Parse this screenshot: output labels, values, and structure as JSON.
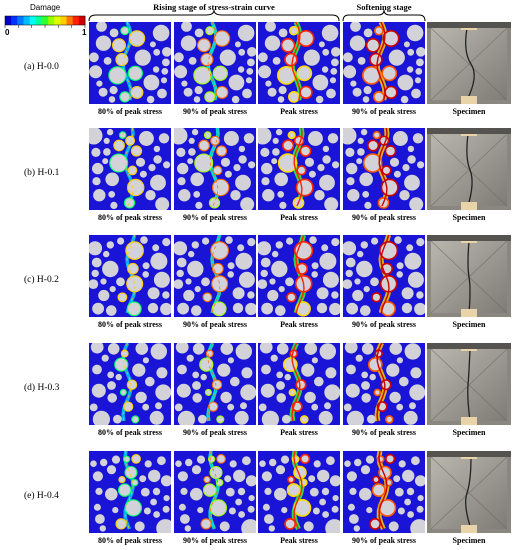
{
  "legend": {
    "title": "Damage",
    "min_label": "0",
    "max_label": "1",
    "colors": [
      "#0000cc",
      "#0033ff",
      "#0077ff",
      "#00bbff",
      "#00ffee",
      "#00ff99",
      "#33ff33",
      "#99ff00",
      "#ddff00",
      "#ffcc00",
      "#ff7700",
      "#ff2200",
      "#cc0000"
    ]
  },
  "stages": {
    "rising": "Rising stage of stress-strain curve",
    "softening": "Softening stage"
  },
  "captions": {
    "p80": "80% of peak stress",
    "p90": "90% of peak stress",
    "peak": "Peak stress",
    "soft90": "90% of peak stress",
    "specimen": "Specimen"
  },
  "rows": [
    {
      "label": "(a) H-0.0"
    },
    {
      "label": "(b) H-0.1"
    },
    {
      "label": "(c) H-0.2"
    },
    {
      "label": "(d) H-0.3"
    },
    {
      "label": "(e) H-0.4"
    }
  ],
  "colors": {
    "matrix": "#1a14d6",
    "aggregate": "#d2d2d8",
    "photo_bg": "#8a8780"
  }
}
